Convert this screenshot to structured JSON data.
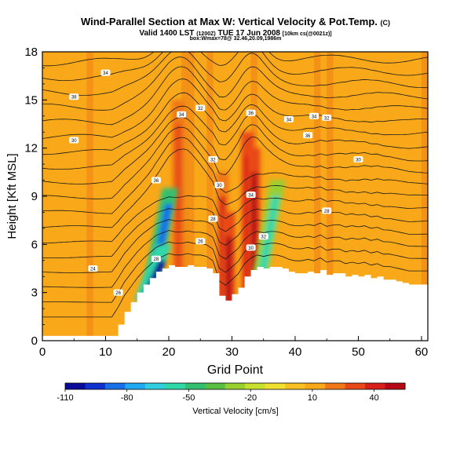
{
  "header": {
    "title_main": "Wind-Parallel Section at Max W: Vertical Velocity & Pot.Temp.",
    "title_mark": "(C)",
    "valid_line": "Valid 1400 LST",
    "valid_small_1": "(1200Z)",
    "valid_date": "TUE 17 Jun 2008",
    "valid_small_2": "[10km cs(@0021z)]",
    "box_line": "box:Wmax=78@ 32.46,20.09,1986m"
  },
  "chart_data": {
    "type": "heatmap",
    "xlabel": "Grid Point",
    "ylabel": "Height [Kft MSL]",
    "xlim": [
      0,
      61
    ],
    "ylim": [
      0,
      18
    ],
    "xticks": [
      0,
      10,
      20,
      30,
      40,
      50,
      60
    ],
    "yticks": [
      0,
      3,
      6,
      9,
      12,
      15,
      18
    ],
    "colorbar": {
      "label": "Vertical Velocity [cm/s]",
      "tick_labels": [
        "-110",
        "-80",
        "-50",
        "-20",
        "10",
        "40"
      ],
      "tick_values": [
        -110,
        -80,
        -50,
        -20,
        10,
        40
      ],
      "range": [
        -110,
        55
      ],
      "colors": [
        "#0a0a9a",
        "#1030d0",
        "#1870e8",
        "#20a8f0",
        "#30d0e0",
        "#30d8a8",
        "#30c070",
        "#58c040",
        "#98d030",
        "#c8e030",
        "#f0e030",
        "#f8c020",
        "#f8a818",
        "#f07818",
        "#e84818",
        "#d82018",
        "#b80818"
      ]
    },
    "terrain": {
      "x": [
        0,
        11,
        12,
        13,
        14,
        15,
        16,
        17,
        18,
        19,
        20,
        21,
        22,
        23,
        24,
        25,
        26,
        27,
        28,
        29,
        30,
        31,
        32,
        33,
        34,
        35,
        36,
        37,
        38,
        39,
        40,
        41,
        42,
        43,
        44,
        45,
        46,
        47,
        48,
        49,
        50,
        51,
        52,
        53,
        54,
        55,
        56,
        57,
        58,
        59,
        60,
        61
      ],
      "height": [
        0.3,
        0.3,
        1.0,
        1.8,
        2.4,
        3.0,
        3.5,
        3.9,
        4.3,
        4.5,
        4.7,
        4.6,
        4.6,
        4.7,
        4.6,
        4.6,
        4.5,
        4.2,
        2.8,
        2.5,
        2.9,
        3.3,
        4.0,
        4.4,
        4.6,
        4.5,
        4.6,
        4.6,
        4.5,
        4.3,
        4.2,
        4.2,
        4.3,
        4.2,
        4.4,
        4.1,
        4.2,
        4.2,
        4.0,
        4.1,
        4.0,
        4.1,
        3.9,
        4.0,
        3.8,
        3.8,
        3.7,
        3.6,
        3.5,
        3.5,
        3.5,
        3.5
      ]
    },
    "updrafts": [
      {
        "x": 21.5,
        "ytop": 15.0,
        "value": 30
      },
      {
        "x": 28.5,
        "ytop": 10.5,
        "value": 40
      },
      {
        "x": 29.5,
        "ytop": 8.0,
        "value": 55
      },
      {
        "x": 32.5,
        "ytop": 13.0,
        "value": 45
      },
      {
        "x": 33.5,
        "ytop": 12.0,
        "value": 50
      }
    ],
    "downdrafts": [
      {
        "x": 18.5,
        "ytop": 9.5,
        "value": -90
      },
      {
        "x": 17.5,
        "ytop": 6.0,
        "value": -110
      },
      {
        "x": 35.5,
        "ytop": 10.0,
        "value": -60
      }
    ],
    "contour_labels": [
      "34",
      "38",
      "30",
      "36",
      "34",
      "32",
      "32",
      "30",
      "28",
      "26",
      "36",
      "34",
      "32",
      "36",
      "34",
      "30",
      "28",
      "34",
      "32",
      "30",
      "28",
      "26",
      "24"
    ]
  }
}
